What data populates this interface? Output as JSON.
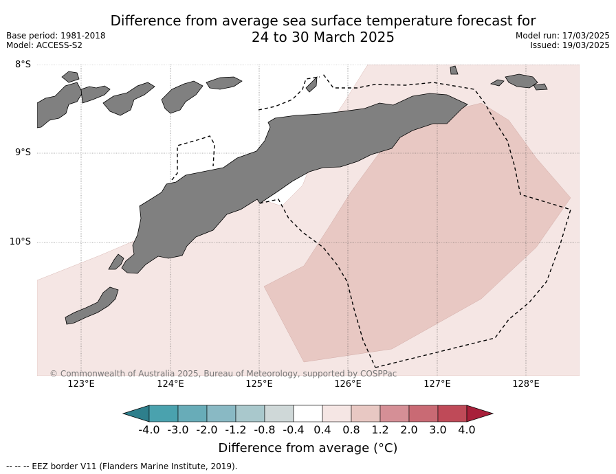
{
  "header": {
    "title_line1": "Difference from average sea surface temperature forecast for",
    "title_line2": "24 to 30 March 2025",
    "base_period": "Base period: 1981-2018",
    "model": "Model: ACCESS-S2",
    "model_run": "Model run: 17/03/2025",
    "issued": "Issued: 19/03/2025"
  },
  "map": {
    "lat_labels": [
      "8°S",
      "9°S",
      "10°S"
    ],
    "lon_labels": [
      "123°E",
      "124°E",
      "125°E",
      "126°E",
      "127°E",
      "128°E"
    ],
    "copyright": "© Commonwealth of Australia 2025, Bureau of Meteorology, supported by COSPPac",
    "colors": {
      "land": "#808080",
      "anomaly_04_08": "#f5e6e4",
      "anomaly_08_12": "#e8c8c3"
    }
  },
  "legend": {
    "ticks": [
      "-4.0",
      "-3.0",
      "-2.0",
      "-1.2",
      "-0.8",
      "-0.4",
      "0.4",
      "0.8",
      "1.2",
      "2.0",
      "3.0",
      "4.0"
    ],
    "colors": [
      "#2e7f8c",
      "#4aa2ae",
      "#68acb8",
      "#89b9c4",
      "#a9c8cc",
      "#cfd8d8",
      "#ffffff",
      "#f5e6e4",
      "#e8c8c3",
      "#d58f96",
      "#c96a74",
      "#bf4a58",
      "#a8203a"
    ],
    "label": "Difference from average (°C)"
  },
  "footnote": "--  --  -- EEZ border V11 (Flanders Marine Institute, 2019)."
}
